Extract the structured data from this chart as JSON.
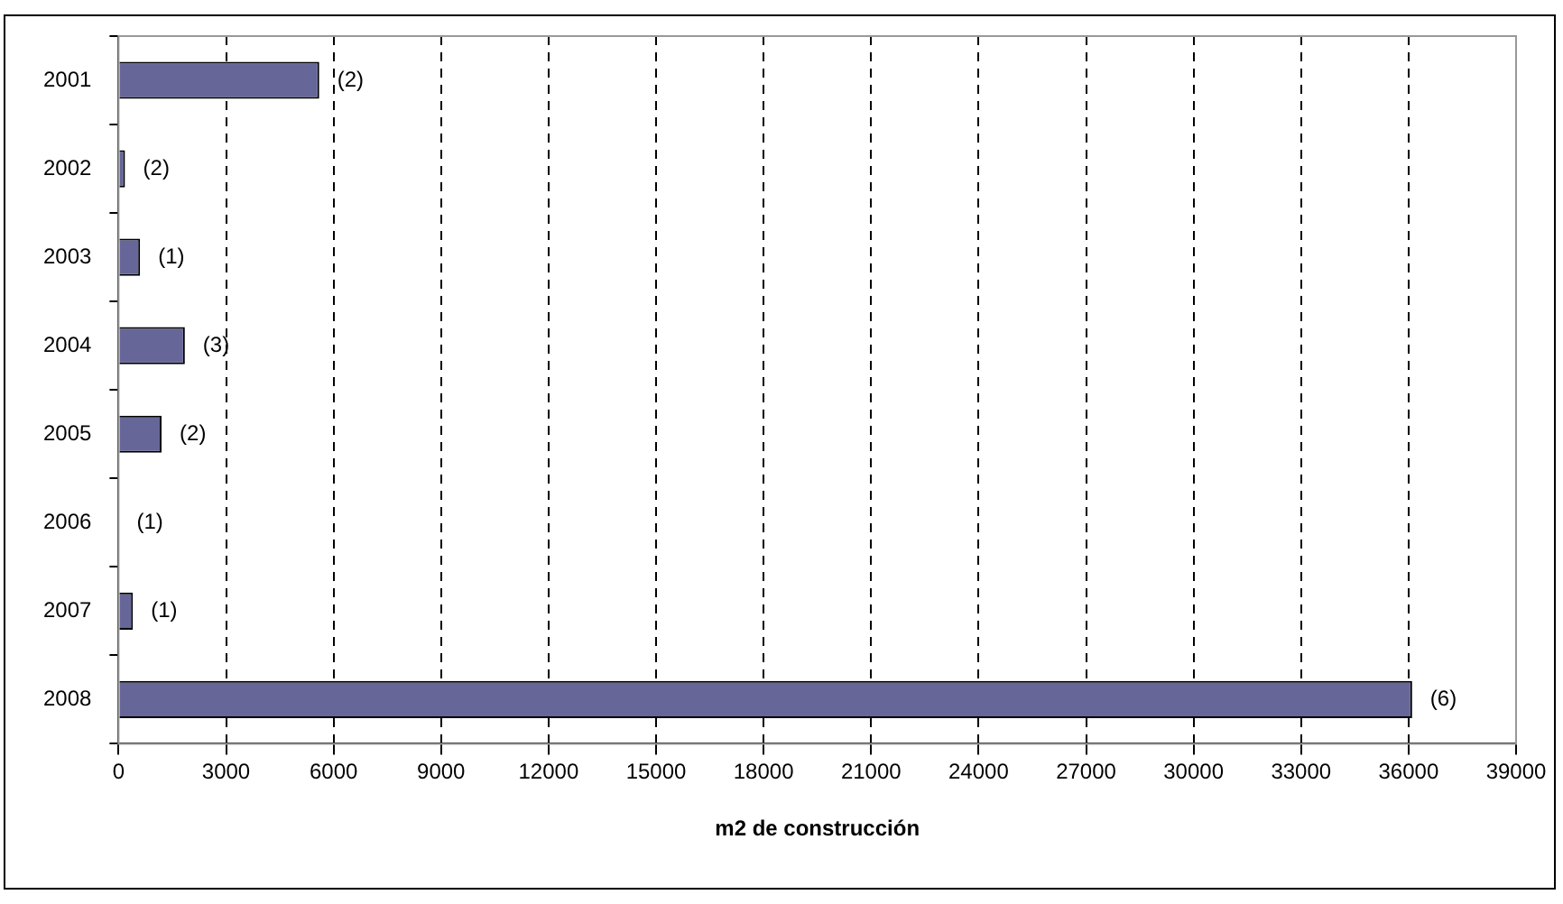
{
  "chart_data": {
    "type": "bar",
    "orientation": "horizontal",
    "xlabel": "m2 de construcción",
    "categories": [
      "2001",
      "2002",
      "2003",
      "2004",
      "2005",
      "2006",
      "2007",
      "2008"
    ],
    "values": [
      5600,
      180,
      600,
      1850,
      1200,
      0,
      400,
      36100
    ],
    "color": "#666699",
    "xlim": [
      0,
      39000
    ],
    "xticks": [
      0,
      3000,
      6000,
      9000,
      12000,
      15000,
      18000,
      21000,
      24000,
      27000,
      30000,
      33000,
      36000,
      39000
    ],
    "grid": "x",
    "legend": false,
    "annotations": [
      {
        "text": "(2)",
        "x": 5600,
        "y": "2001"
      },
      {
        "text": "(2)",
        "x": 180,
        "y": "2002"
      },
      {
        "text": "(1)",
        "x": 600,
        "y": "2003"
      },
      {
        "text": "(3)",
        "x": 1850,
        "y": "2004"
      },
      {
        "text": "(2)",
        "x": 1200,
        "y": "2005"
      },
      {
        "text": "(1)",
        "x": 0,
        "y": "2006"
      },
      {
        "text": "(1)",
        "x": 400,
        "y": "2007"
      },
      {
        "text": "(6)",
        "x": 36100,
        "y": "2008"
      }
    ]
  }
}
